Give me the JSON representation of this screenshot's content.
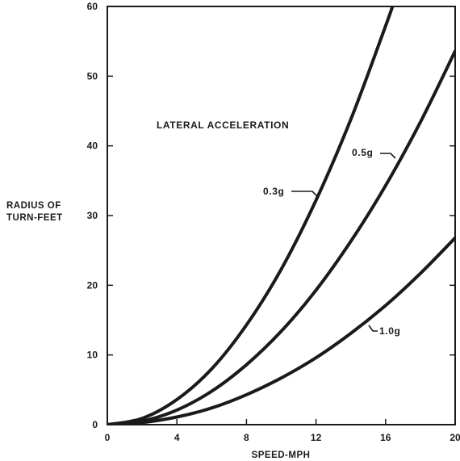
{
  "chart_data": {
    "type": "line",
    "title": "",
    "annotation": "LATERAL ACCELERATION",
    "xlabel": "SPEED-MPH",
    "ylabel_lines": [
      "RADIUS OF",
      "TURN-FEET"
    ],
    "xlim": [
      0,
      20
    ],
    "ylim": [
      0,
      60
    ],
    "x_ticks": [
      0,
      4,
      8,
      12,
      16,
      20
    ],
    "x_tick_labels": [
      "0",
      "4",
      "8",
      "12",
      "16",
      "20"
    ],
    "y_ticks": [
      0,
      10,
      20,
      30,
      40,
      50,
      60
    ],
    "y_tick_labels": [
      "0",
      "10",
      "20",
      "30",
      "40",
      "50",
      "60"
    ],
    "grid": false,
    "series": [
      {
        "name": "0.3g",
        "x": [
          0,
          2,
          4,
          6,
          8,
          10,
          12,
          14,
          16,
          16.5
        ],
        "y": [
          0,
          0.9,
          3.6,
          8.0,
          14.3,
          22.3,
          32.2,
          43.8,
          57.2,
          60.8
        ]
      },
      {
        "name": "0.5g",
        "x": [
          0,
          2,
          4,
          6,
          8,
          10,
          12,
          14,
          16,
          18,
          20
        ],
        "y": [
          0,
          0.5,
          2.1,
          4.8,
          8.6,
          13.4,
          19.3,
          26.3,
          34.3,
          43.4,
          53.6
        ]
      },
      {
        "name": "1.0g",
        "x": [
          0,
          2,
          4,
          6,
          8,
          10,
          12,
          14,
          16,
          18,
          20
        ],
        "y": [
          0,
          0.3,
          1.1,
          2.4,
          4.3,
          6.7,
          9.6,
          13.1,
          17.1,
          21.7,
          26.8
        ]
      }
    ]
  }
}
